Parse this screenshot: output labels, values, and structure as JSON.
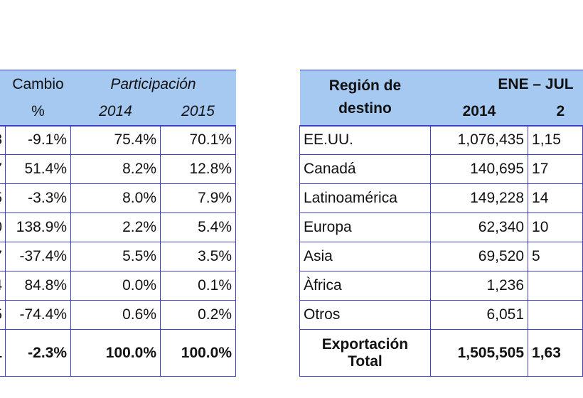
{
  "left_table": {
    "header": {
      "cambio_top": "Cambio",
      "cambio_bottom": "%",
      "participacion": "Participación",
      "year_a": "2014",
      "year_b": "2015"
    },
    "rows": [
      {
        "cut": "3",
        "cambio": "-9.1%",
        "p2014": "75.4%",
        "p2015": "70.1%"
      },
      {
        "cut": "7",
        "cambio": "51.4%",
        "p2014": "8.2%",
        "p2015": "12.8%"
      },
      {
        "cut": "5",
        "cambio": "-3.3%",
        "p2014": "8.0%",
        "p2015": "7.9%"
      },
      {
        "cut": "0",
        "cambio": "138.9%",
        "p2014": "2.2%",
        "p2015": "5.4%"
      },
      {
        "cut": "7",
        "cambio": "-37.4%",
        "p2014": "5.5%",
        "p2015": "3.5%"
      },
      {
        "cut": "4",
        "cambio": "84.8%",
        "p2014": "0.0%",
        "p2015": "0.1%"
      },
      {
        "cut": "5",
        "cambio": "-74.4%",
        "p2014": "0.6%",
        "p2015": "0.2%"
      }
    ],
    "total": {
      "cut": "1",
      "cambio": "-2.3%",
      "p2014": "100.0%",
      "p2015": "100.0%"
    }
  },
  "right_table": {
    "header": {
      "region_line1": "Región de",
      "region_line2": "destino",
      "period": "ENE – JUL",
      "year_a": "2014",
      "year_b": "2"
    },
    "rows": [
      {
        "region": "EE.UU.",
        "v2014": "1,076,435",
        "v2015": "1,15"
      },
      {
        "region": "Canadá",
        "v2014": "140,695",
        "v2015": "17"
      },
      {
        "region": "Latinoamérica",
        "v2014": "149,228",
        "v2015": "14"
      },
      {
        "region": "Europa",
        "v2014": "62,340",
        "v2015": "10"
      },
      {
        "region": "Asia",
        "v2014": "69,520",
        "v2015": "5"
      },
      {
        "region": "Àfrica",
        "v2014": "1,236",
        "v2015": ""
      },
      {
        "region": "Otros",
        "v2014": "6,051",
        "v2015": ""
      }
    ],
    "total": {
      "region_line1": "Exportación",
      "region_line2": "Total",
      "v2014": "1,505,505",
      "v2015": "1,63"
    }
  }
}
